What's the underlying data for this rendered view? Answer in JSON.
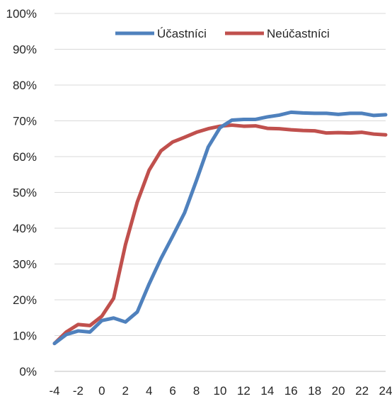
{
  "chart_data": {
    "type": "line",
    "title": "",
    "xlabel": "",
    "ylabel": "",
    "x": [
      -4,
      -3,
      -2,
      -1,
      0,
      1,
      2,
      3,
      4,
      5,
      6,
      7,
      8,
      9,
      10,
      11,
      12,
      13,
      14,
      15,
      16,
      17,
      18,
      19,
      20,
      21,
      22,
      23,
      24
    ],
    "x_ticks": [
      "-4",
      "-2",
      "0",
      "2",
      "4",
      "6",
      "8",
      "10",
      "12",
      "14",
      "16",
      "18",
      "20",
      "22",
      "24"
    ],
    "x_tick_values": [
      -4,
      -2,
      0,
      2,
      4,
      6,
      8,
      10,
      12,
      14,
      16,
      18,
      20,
      22,
      24
    ],
    "xlim": [
      -4,
      24
    ],
    "y_ticks": [
      "0%",
      "10%",
      "20%",
      "30%",
      "40%",
      "50%",
      "60%",
      "70%",
      "80%",
      "90%",
      "100%"
    ],
    "y_tick_values": [
      0,
      10,
      20,
      30,
      40,
      50,
      60,
      70,
      80,
      90,
      100
    ],
    "ylim": [
      0,
      100
    ],
    "grid": "horizontal",
    "legend_position": "top",
    "series": [
      {
        "name": "Účastníci",
        "color": "#4f81bd",
        "values": [
          7.8,
          10.3,
          11.3,
          11.0,
          14.2,
          14.9,
          13.8,
          16.6,
          24.4,
          31.5,
          37.8,
          44.3,
          53.3,
          62.7,
          68.1,
          70.2,
          70.4,
          70.4,
          71.1,
          71.6,
          72.4,
          72.2,
          72.1,
          72.1,
          71.8,
          72.1,
          72.1,
          71.5,
          71.7
        ]
      },
      {
        "name": "Neúčastníci",
        "color": "#c0504d",
        "values": [
          7.8,
          11.0,
          13.1,
          12.8,
          15.4,
          20.4,
          35.4,
          47.3,
          56.2,
          61.6,
          64.1,
          65.4,
          66.8,
          67.8,
          68.5,
          68.8,
          68.5,
          68.6,
          67.9,
          67.8,
          67.5,
          67.3,
          67.2,
          66.6,
          66.7,
          66.6,
          66.8,
          66.3,
          66.1
        ]
      }
    ]
  }
}
